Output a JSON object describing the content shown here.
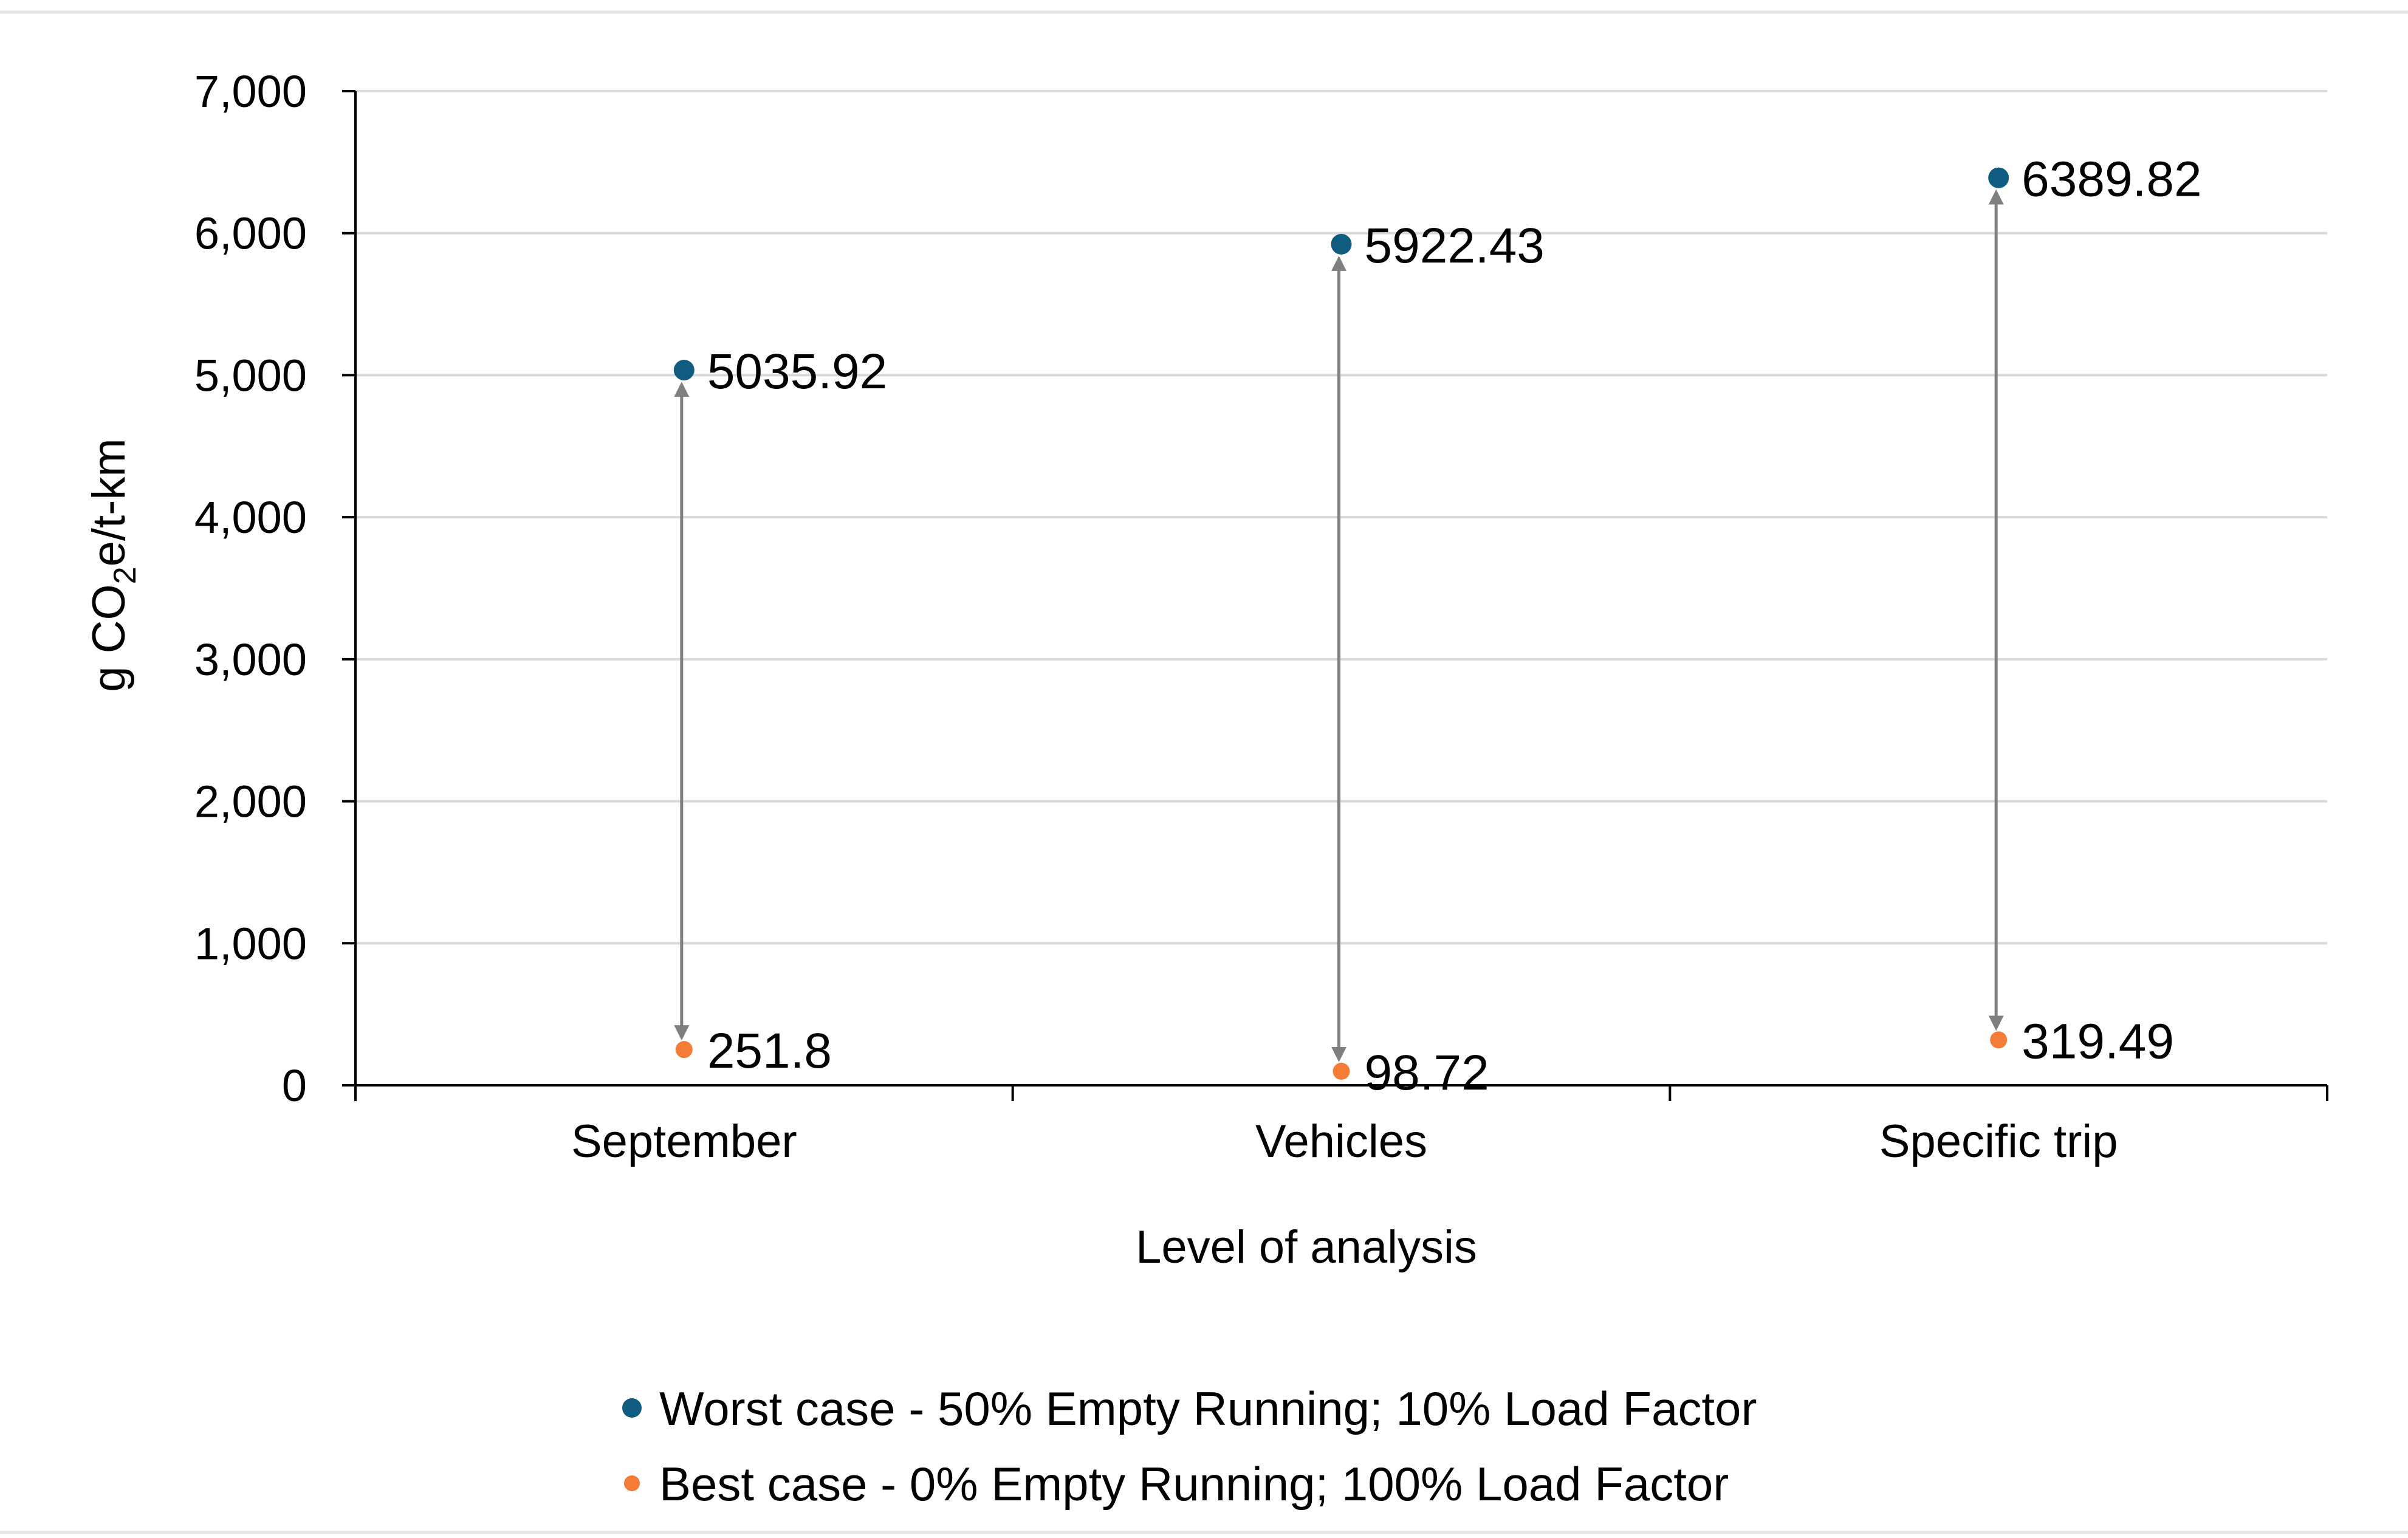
{
  "chart_data": {
    "type": "scatter",
    "categories": [
      "September",
      "Vehicles",
      "Specific trip"
    ],
    "series": [
      {
        "name": "Worst case - 50% Empty Running; 10% Load Factor",
        "values": [
          5035.92,
          5922.43,
          6389.82
        ],
        "labels": [
          "5035.92",
          "5922.43",
          "6389.82"
        ],
        "color": "#0f5c80"
      },
      {
        "name": "Best case - 0% Empty Running; 100% Load Factor",
        "values": [
          251.8,
          98.72,
          319.49
        ],
        "labels": [
          "251.8",
          "98.72",
          "319.49"
        ],
        "color": "#f47c36"
      }
    ],
    "xlabel": "Level of analysis",
    "ylabel": {
      "main": "g CO",
      "subscript": "2",
      "rest": "e/t-km"
    },
    "ylim": [
      0,
      7000
    ],
    "yticks": [
      0,
      1000,
      2000,
      3000,
      4000,
      5000,
      6000,
      7000
    ],
    "ytick_labels": [
      "0",
      "1,000",
      "2,000",
      "3,000",
      "4,000",
      "5,000",
      "6,000",
      "7,000"
    ],
    "range_arrows": true,
    "range_arrow_color": "#7f7f7f",
    "grid": true,
    "legend_position": "bottom"
  }
}
